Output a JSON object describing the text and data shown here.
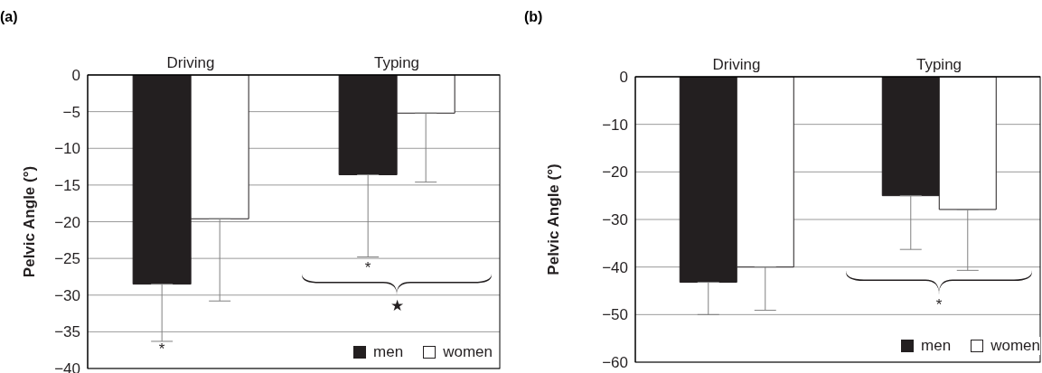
{
  "chart_data": [
    {
      "type": "bar",
      "title": "(a)",
      "ylabel": "Pelvic Angle (°)",
      "categories": [
        "Driving",
        "Typing"
      ],
      "series": [
        {
          "name": "men",
          "color": "#231f20",
          "values": [
            -28.5,
            -13.6
          ],
          "errors": [
            [
              -36.3,
              -28.5
            ],
            [
              -24.8,
              -13.6
            ]
          ]
        },
        {
          "name": "women",
          "color": "#ffffff",
          "values": [
            -19.6,
            -5.2
          ],
          "errors": [
            [
              -30.8,
              -19.6
            ],
            [
              -14.6,
              -5.2
            ]
          ]
        }
      ],
      "ylim": [
        -40,
        0
      ],
      "yticks": [
        {
          "value": -40,
          "label": "−40"
        },
        {
          "value": -35,
          "label": "−35"
        },
        {
          "value": -30,
          "label": "−30"
        },
        {
          "value": -25,
          "label": "−25"
        },
        {
          "value": -20,
          "label": "−20"
        },
        {
          "value": -15,
          "label": "−15"
        },
        {
          "value": -10,
          "label": "−10"
        },
        {
          "value": -5,
          "label": "−5"
        },
        0
      ],
      "grid": "y",
      "legend": "bottom right",
      "annotations": [
        "*",
        "*",
        "★"
      ]
    },
    {
      "type": "bar",
      "title": "(b)",
      "ylabel": "Pelvic Angle (°)",
      "categories": [
        "Driving",
        "Typing"
      ],
      "series": [
        {
          "name": "men",
          "color": "#231f20",
          "values": [
            -43.2,
            -25
          ],
          "errors": [
            [
              -50,
              -43.2
            ],
            [
              -36.3,
              -25
            ]
          ]
        },
        {
          "name": "women",
          "color": "#ffffff",
          "values": [
            -40,
            -27.9
          ],
          "errors": [
            [
              -49.1,
              -40
            ],
            [
              -40.7,
              -27.9
            ]
          ]
        }
      ],
      "ylim": [
        -60,
        0
      ],
      "yticks": [
        {
          "value": -60,
          "label": "−60"
        },
        {
          "value": -50,
          "label": "−50"
        },
        {
          "value": -40,
          "label": "−40"
        },
        {
          "value": -30,
          "label": "−30"
        },
        {
          "value": -20,
          "label": "−20"
        },
        {
          "value": -10,
          "label": "−10"
        },
        0
      ],
      "grid": "y",
      "legend": "bottom right",
      "annotations": [
        "*"
      ]
    }
  ]
}
